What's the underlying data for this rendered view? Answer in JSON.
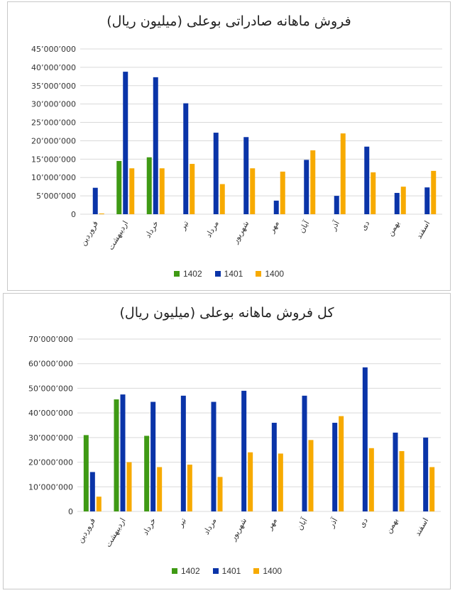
{
  "colors": {
    "s1402": "#3f9a14",
    "s1401": "#0a34a8",
    "s1400": "#f7aa00",
    "grid": "#d9d9d9"
  },
  "chart_data": [
    {
      "type": "bar",
      "title": "فروش ماهانه صادراتی بوعلی (میلیون ریال)",
      "categories": [
        "فروردین",
        "اردیبهشت",
        "خرداد",
        "تیر",
        "مرداد",
        "شهریور",
        "مهر",
        "آبان",
        "آذر",
        "دی",
        "بهمن",
        "اسفند"
      ],
      "series": [
        {
          "name": "1402",
          "values": [
            0,
            14500000,
            15500000,
            0,
            0,
            0,
            0,
            0,
            0,
            0,
            0,
            0
          ]
        },
        {
          "name": "1401",
          "values": [
            7200000,
            38800000,
            37300000,
            30200000,
            22200000,
            21000000,
            3700000,
            14800000,
            5000000,
            18400000,
            5800000,
            7300000
          ]
        },
        {
          "name": "1400",
          "values": [
            200000,
            12500000,
            12500000,
            13700000,
            8200000,
            12500000,
            11600000,
            17400000,
            22000000,
            11400000,
            7500000,
            11800000
          ]
        }
      ],
      "ylim": [
        0,
        45000000
      ],
      "yticks": [
        "0",
        "5٬000٬000",
        "10٬000٬000",
        "15٬000٬000",
        "20٬000٬000",
        "25٬000٬000",
        "30٬000٬000",
        "35٬000٬000",
        "40٬000٬000",
        "45٬000٬000"
      ],
      "legend": [
        "1402",
        "1401",
        "1400"
      ],
      "legend_position": "bottom",
      "grid": true
    },
    {
      "type": "bar",
      "title": "کل فروش ماهانه بوعلی (میلیون ریال)",
      "categories": [
        "فروردین",
        "اردیبهشت",
        "خرداد",
        "تیر",
        "مرداد",
        "شهریور",
        "مهر",
        "آبان",
        "آذر",
        "دی",
        "بهمن",
        "اسفند"
      ],
      "series": [
        {
          "name": "1402",
          "values": [
            31000000,
            45500000,
            30700000,
            0,
            0,
            0,
            0,
            0,
            0,
            0,
            0,
            0
          ]
        },
        {
          "name": "1401",
          "values": [
            16000000,
            47500000,
            44500000,
            47000000,
            44500000,
            49000000,
            36000000,
            47000000,
            36000000,
            58500000,
            32000000,
            30000000
          ]
        },
        {
          "name": "1400",
          "values": [
            6000000,
            20000000,
            18000000,
            19000000,
            14000000,
            24000000,
            23500000,
            29000000,
            38700000,
            25700000,
            24500000,
            18000000
          ]
        }
      ],
      "ylim": [
        0,
        70000000
      ],
      "yticks": [
        "0",
        "10٬000٬000",
        "20٬000٬000",
        "30٬000٬000",
        "40٬000٬000",
        "50٬000٬000",
        "60٬000٬000",
        "70٬000٬000"
      ],
      "legend": [
        "1402",
        "1401",
        "1400"
      ],
      "legend_position": "bottom",
      "grid": true
    }
  ]
}
